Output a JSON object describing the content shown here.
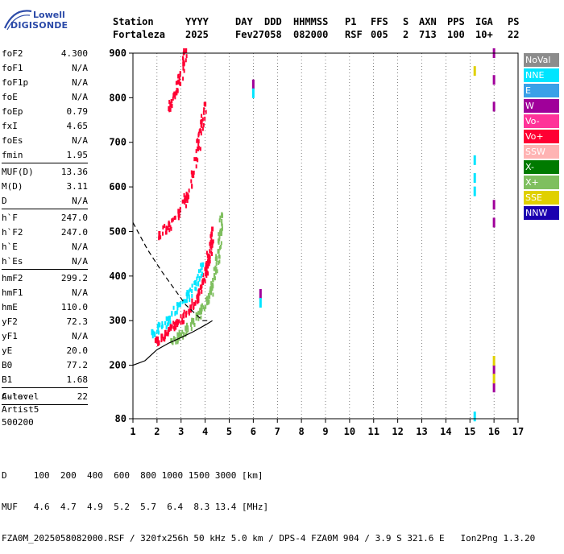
{
  "logo": {
    "line1": "Lowell",
    "line2": "DIGISONDE"
  },
  "header": {
    "labels": [
      "Station",
      "YYYY",
      "DAY",
      "DDD",
      "HHMMSS",
      "P1",
      "FFS",
      "S",
      "AXN",
      "PPS",
      "IGA",
      "PS"
    ],
    "values": [
      "Fortaleza",
      "2025",
      "Fev27",
      "058",
      "082000",
      "RSF",
      "005",
      "2",
      "713",
      "100",
      "10+",
      "22"
    ]
  },
  "params": {
    "group1": [
      {
        "label": "foF2",
        "value": "4.300"
      },
      {
        "label": "foF1",
        "value": "N/A"
      },
      {
        "label": "foF1p",
        "value": "N/A"
      },
      {
        "label": "foE",
        "value": "N/A"
      },
      {
        "label": "foEp",
        "value": "0.79"
      },
      {
        "label": "fxI",
        "value": "4.65"
      },
      {
        "label": "foEs",
        "value": "N/A"
      },
      {
        "label": "fmin",
        "value": "1.95"
      }
    ],
    "group2": [
      {
        "label": "MUF(D)",
        "value": "13.36"
      },
      {
        "label": "M(D)",
        "value": "3.11"
      },
      {
        "label": "D",
        "value": "N/A"
      }
    ],
    "group3": [
      {
        "label": "h`F",
        "value": "247.0"
      },
      {
        "label": "h`F2",
        "value": "247.0"
      },
      {
        "label": "h`E",
        "value": "N/A"
      },
      {
        "label": "h`Es",
        "value": "N/A"
      }
    ],
    "group4": [
      {
        "label": "hmF2",
        "value": "299.2"
      },
      {
        "label": "hmF1",
        "value": "N/A"
      },
      {
        "label": "hmE",
        "value": "110.0"
      },
      {
        "label": "yF2",
        "value": "72.3"
      },
      {
        "label": "yF1",
        "value": "N/A"
      },
      {
        "label": "yE",
        "value": "20.0"
      },
      {
        "label": "B0",
        "value": "77.2"
      },
      {
        "label": "B1",
        "value": "1.68"
      }
    ],
    "group5": [
      {
        "label": "C-level",
        "value": "22"
      }
    ]
  },
  "auto": {
    "line1": "Auto:",
    "line2": "Artist5",
    "line3": "500200"
  },
  "footer": {
    "d_row": "D     100  200  400  600  800 1000 1500 3000 [km]",
    "muf_row": "MUF   4.6  4.7  4.9  5.2  5.7  6.4  8.3 13.4 [MHz]",
    "info_row": "FZA0M_2025058082000.RSF / 320fx256h 50 kHz 5.0 km / DPS-4 FZA0M 904 / 3.9 S 321.6 E   Ion2Png 1.3.20"
  },
  "legend": [
    {
      "label": "NoVal",
      "color": "#8c8c8c"
    },
    {
      "label": "NNE",
      "color": "#00e5ff"
    },
    {
      "label": "E",
      "color": "#3aa0e8"
    },
    {
      "label": "W",
      "color": "#a0009a"
    },
    {
      "label": "Vo-",
      "color": "#ff3399"
    },
    {
      "label": "Vo+",
      "color": "#ff0033"
    },
    {
      "label": "SSW",
      "color": "#ffb3b3"
    },
    {
      "label": "X-",
      "color": "#007a00"
    },
    {
      "label": "X+",
      "color": "#7fbf5f"
    },
    {
      "label": "SSE",
      "color": "#e0d000"
    },
    {
      "label": "NNW",
      "color": "#1a00b0"
    }
  ],
  "chart_data": {
    "type": "scatter",
    "xlim": [
      1,
      17
    ],
    "ylim": [
      80,
      900
    ],
    "xticks": [
      1,
      2,
      3,
      4,
      5,
      6,
      7,
      8,
      9,
      10,
      11,
      12,
      13,
      14,
      15,
      16,
      17
    ],
    "yticks": [
      80,
      200,
      300,
      400,
      500,
      600,
      700,
      800,
      900
    ],
    "grid": "vertical dotted",
    "series": [
      {
        "name": "Vo+",
        "color": "#ff0033",
        "band": "o-trace",
        "points": [
          [
            1.95,
            250
          ],
          [
            2.2,
            260
          ],
          [
            2.5,
            275
          ],
          [
            2.8,
            290
          ],
          [
            3.1,
            305
          ],
          [
            3.4,
            325
          ],
          [
            3.7,
            350
          ],
          [
            3.9,
            380
          ],
          [
            4.05,
            410
          ],
          [
            4.15,
            440
          ],
          [
            4.25,
            470
          ],
          [
            4.3,
            500
          ]
        ]
      },
      {
        "name": "X+",
        "color": "#7fbf5f",
        "band": "x-trace",
        "points": [
          [
            2.6,
            250
          ],
          [
            2.9,
            262
          ],
          [
            3.2,
            278
          ],
          [
            3.5,
            295
          ],
          [
            3.8,
            318
          ],
          [
            4.1,
            345
          ],
          [
            4.3,
            375
          ],
          [
            4.45,
            410
          ],
          [
            4.55,
            450
          ],
          [
            4.65,
            490
          ],
          [
            4.7,
            530
          ]
        ]
      },
      {
        "name": "NNE",
        "color": "#00e5ff",
        "band": "o-spread",
        "points": [
          [
            1.8,
            270
          ],
          [
            2.1,
            285
          ],
          [
            2.5,
            300
          ],
          [
            2.9,
            330
          ],
          [
            3.3,
            355
          ],
          [
            3.6,
            380
          ],
          [
            3.9,
            420
          ]
        ]
      },
      {
        "name": "Vo+ multi-hop",
        "color": "#ff0033",
        "band": "2F",
        "points": [
          [
            2.1,
            490
          ],
          [
            2.5,
            510
          ],
          [
            2.9,
            540
          ],
          [
            3.2,
            570
          ],
          [
            3.5,
            620
          ],
          [
            3.7,
            680
          ],
          [
            3.85,
            740
          ],
          [
            4.0,
            780
          ]
        ]
      },
      {
        "name": "Vo+ 3-hop",
        "color": "#ff0033",
        "band": "3F",
        "points": [
          [
            2.5,
            770
          ],
          [
            2.7,
            800
          ],
          [
            2.9,
            830
          ],
          [
            3.1,
            870
          ],
          [
            3.2,
            900
          ]
        ]
      },
      {
        "name": "W",
        "color": "#a0009a",
        "band": "spurious",
        "points": [
          [
            16.0,
            900
          ],
          [
            16.0,
            840
          ],
          [
            16.0,
            780
          ],
          [
            16.0,
            560
          ],
          [
            16.0,
            520
          ],
          [
            16.0,
            190
          ],
          [
            16.0,
            150
          ],
          [
            6.3,
            360
          ],
          [
            6.0,
            830
          ]
        ]
      },
      {
        "name": "NNE",
        "color": "#00e5ff",
        "band": "spurious",
        "points": [
          [
            15.2,
            660
          ],
          [
            15.2,
            620
          ],
          [
            15.2,
            590
          ],
          [
            6.3,
            340
          ],
          [
            6.0,
            810
          ],
          [
            15.2,
            85
          ]
        ]
      },
      {
        "name": "SSE",
        "color": "#e0d000",
        "band": "spurious",
        "points": [
          [
            16.0,
            210
          ],
          [
            16.0,
            170
          ],
          [
            15.2,
            860
          ]
        ]
      }
    ],
    "profile": {
      "type": "line",
      "solid": [
        [
          1.0,
          200
        ],
        [
          1.5,
          210
        ],
        [
          2.0,
          235
        ],
        [
          2.5,
          250
        ],
        [
          3.0,
          262
        ],
        [
          3.5,
          275
        ],
        [
          4.0,
          290
        ],
        [
          4.3,
          300
        ]
      ],
      "dashed": [
        [
          1.0,
          520
        ],
        [
          1.6,
          460
        ],
        [
          2.2,
          410
        ],
        [
          2.8,
          365
        ],
        [
          3.2,
          335
        ],
        [
          3.6,
          315
        ],
        [
          3.9,
          300
        ],
        [
          4.1,
          300
        ]
      ]
    }
  }
}
